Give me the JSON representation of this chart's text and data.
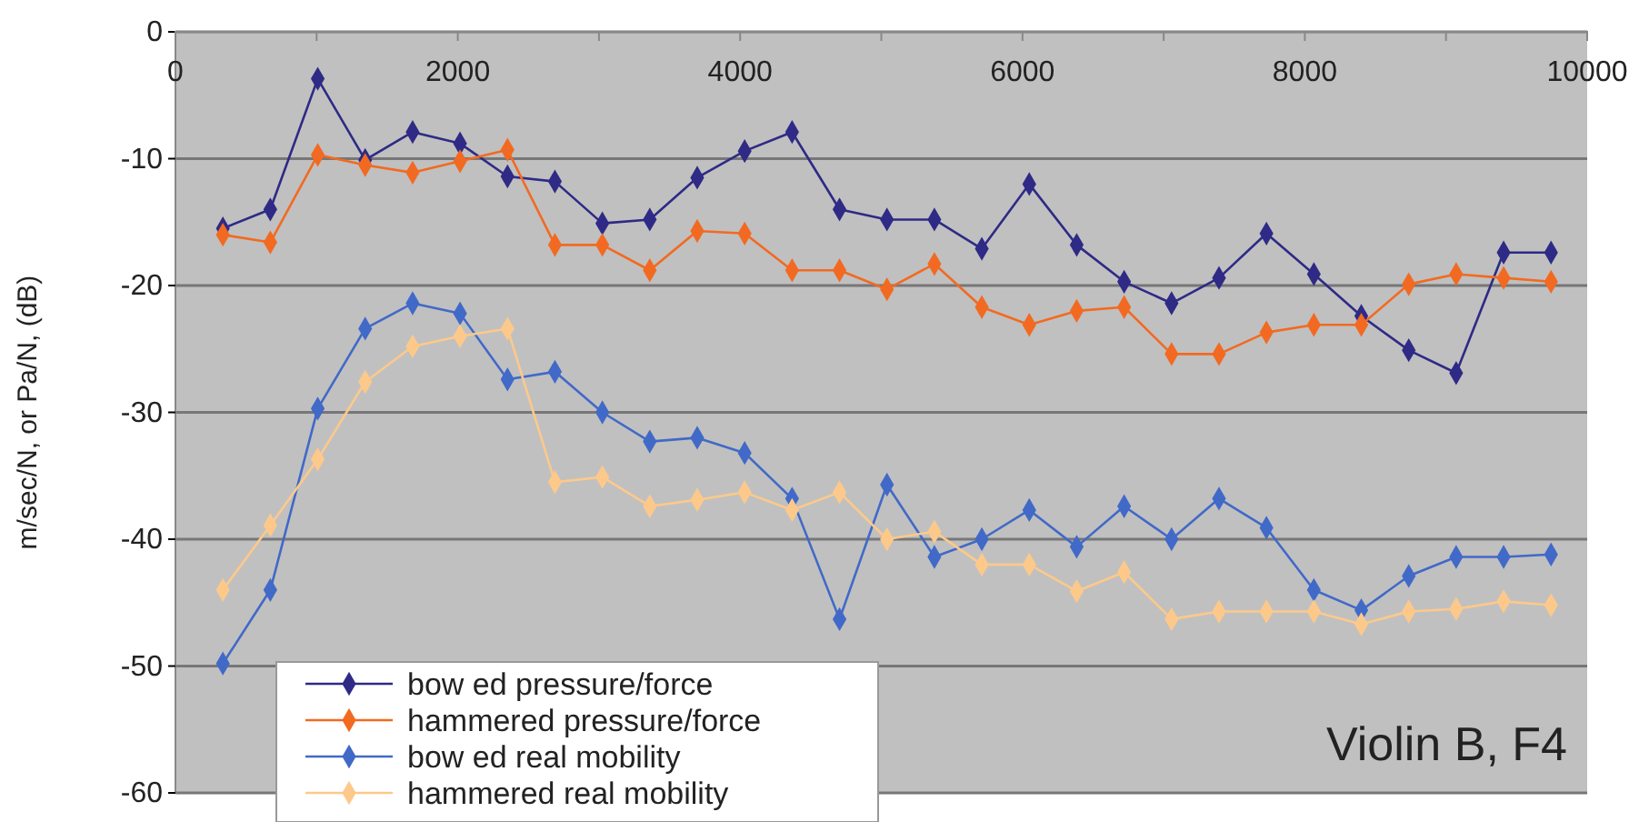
{
  "chart_data": {
    "type": "line",
    "ylabel": "m/sec/N,  or  Pa/N, (dB)",
    "x": [
      336,
      672,
      1008,
      1344,
      1680,
      2016,
      2352,
      2688,
      3024,
      3360,
      3696,
      4032,
      4368,
      4704,
      5040,
      5376,
      5712,
      6048,
      6384,
      6720,
      7056,
      7392,
      7728,
      8064,
      8400,
      8736,
      9072,
      9408,
      9744
    ],
    "series": [
      {
        "name": "bow ed pressure/force",
        "color": "#2e2a86",
        "values": [
          -15.5,
          -14.0,
          -3.7,
          -10.1,
          -7.9,
          -8.8,
          -11.4,
          -11.8,
          -15.1,
          -14.8,
          -11.5,
          -9.4,
          -7.9,
          -14.0,
          -14.8,
          -14.8,
          -17.1,
          -12.0,
          -16.8,
          -19.7,
          -21.4,
          -19.4,
          -15.9,
          -19.1,
          -22.4,
          -25.1,
          -26.9,
          -17.4,
          -17.4
        ]
      },
      {
        "name": "hammered pressure/force",
        "color": "#f26a21",
        "values": [
          -16.0,
          -16.6,
          -9.7,
          -10.5,
          -11.1,
          -10.2,
          -9.3,
          -16.8,
          -16.8,
          -18.8,
          -15.7,
          -15.9,
          -18.8,
          -18.8,
          -20.3,
          -18.3,
          -21.7,
          -23.1,
          -22.0,
          -21.7,
          -25.4,
          -25.4,
          -23.7,
          -23.1,
          -23.1,
          -19.9,
          -19.1,
          -19.4,
          -19.7
        ]
      },
      {
        "name": "bow ed real mobility",
        "color": "#4169c8",
        "values": [
          -49.8,
          -44.0,
          -29.7,
          -23.4,
          -21.4,
          -22.2,
          -27.4,
          -26.8,
          -30.0,
          -32.3,
          -32.0,
          -33.2,
          -36.8,
          -46.3,
          -35.7,
          -41.4,
          -40.0,
          -37.7,
          -40.6,
          -37.4,
          -40.0,
          -36.8,
          -39.1,
          -44.0,
          -45.6,
          -42.9,
          -41.4,
          -41.4,
          -41.2
        ]
      },
      {
        "name": "hammered real mobility",
        "color": "#fdc98a",
        "values": [
          -44.0,
          -38.9,
          -33.7,
          -27.6,
          -24.8,
          -24.0,
          -23.4,
          -35.5,
          -35.1,
          -37.4,
          -36.9,
          -36.3,
          -37.7,
          -36.3,
          -40.0,
          -39.4,
          -42.0,
          -42.0,
          -44.1,
          -42.6,
          -46.3,
          -45.7,
          -45.7,
          -45.7,
          -46.7,
          -45.7,
          -45.5,
          -44.9,
          -45.2
        ]
      }
    ],
    "xlim": [
      0,
      10000
    ],
    "xticks": [
      0,
      {
        "value": 1000,
        "label": null
      },
      2000,
      {
        "value": 3000,
        "label": null
      },
      4000,
      {
        "value": 5000,
        "label": null
      },
      6000,
      {
        "value": 7000,
        "label": null
      },
      8000,
      {
        "value": 9000,
        "label": null
      },
      10000
    ],
    "ylim": [
      -60,
      0
    ],
    "yticks": [
      -60,
      -50,
      -40,
      -30,
      -20,
      -10,
      0
    ],
    "grid": "y",
    "legend": "bottom left",
    "marker": "diamond",
    "line_style": "solid",
    "annotations": [
      {
        "text": "Violin B, F4"
      }
    ]
  }
}
